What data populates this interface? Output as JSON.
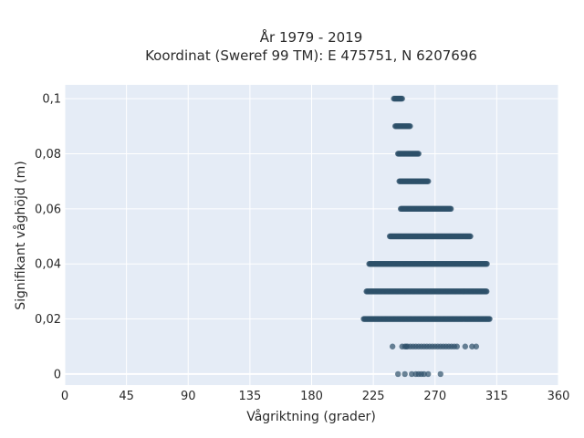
{
  "chart_data": {
    "type": "scatter",
    "title_line1": "År 1979 - 2019",
    "title_line2": "Koordinat (Sweref 99 TM): E 475751, N 6207696",
    "xlabel": "Vågriktning (grader)",
    "ylabel": "Signifikant våghöjd (m)",
    "xlim": [
      0,
      360
    ],
    "ylim": [
      -0.004,
      0.105
    ],
    "x_ticks": [
      0,
      45,
      90,
      135,
      180,
      225,
      270,
      315,
      360
    ],
    "x_tick_labels": [
      "0",
      "45",
      "90",
      "135",
      "180",
      "225",
      "270",
      "315",
      "360"
    ],
    "y_ticks": [
      0,
      0.02,
      0.04,
      0.06,
      0.08,
      0.1
    ],
    "y_tick_labels": [
      "0",
      "0,02",
      "0,04",
      "0,06",
      "0,08",
      "0,1"
    ],
    "grid": true,
    "colors": {
      "background": "#e5ecf6",
      "grid": "#ffffff",
      "marker": "#2e5069"
    },
    "bands": [
      {
        "y": 0.1,
        "x_min": 240,
        "x_max": 246
      },
      {
        "y": 0.09,
        "x_min": 241,
        "x_max": 252
      },
      {
        "y": 0.08,
        "x_min": 243,
        "x_max": 258
      },
      {
        "y": 0.07,
        "x_min": 244,
        "x_max": 265
      },
      {
        "y": 0.06,
        "x_min": 245,
        "x_max": 282
      },
      {
        "y": 0.05,
        "x_min": 237,
        "x_max": 296
      },
      {
        "y": 0.04,
        "x_min": 222,
        "x_max": 308
      },
      {
        "y": 0.03,
        "x_min": 220,
        "x_max": 308
      },
      {
        "y": 0.02,
        "x_min": 218,
        "x_max": 310
      }
    ],
    "sparse_points": [
      {
        "x": 239,
        "y": 0.01
      },
      {
        "x": 246,
        "y": 0.01
      },
      {
        "x": 248,
        "y": 0.01
      },
      {
        "x": 249,
        "y": 0.01
      },
      {
        "x": 250,
        "y": 0.01
      },
      {
        "x": 252,
        "y": 0.01
      },
      {
        "x": 254,
        "y": 0.01
      },
      {
        "x": 256,
        "y": 0.01
      },
      {
        "x": 258,
        "y": 0.01
      },
      {
        "x": 260,
        "y": 0.01
      },
      {
        "x": 262,
        "y": 0.01
      },
      {
        "x": 264,
        "y": 0.01
      },
      {
        "x": 266,
        "y": 0.01
      },
      {
        "x": 268,
        "y": 0.01
      },
      {
        "x": 270,
        "y": 0.01
      },
      {
        "x": 272,
        "y": 0.01
      },
      {
        "x": 274,
        "y": 0.01
      },
      {
        "x": 276,
        "y": 0.01
      },
      {
        "x": 278,
        "y": 0.01
      },
      {
        "x": 280,
        "y": 0.01
      },
      {
        "x": 282,
        "y": 0.01
      },
      {
        "x": 284,
        "y": 0.01
      },
      {
        "x": 286,
        "y": 0.01
      },
      {
        "x": 292,
        "y": 0.01
      },
      {
        "x": 297,
        "y": 0.01
      },
      {
        "x": 300,
        "y": 0.01
      },
      {
        "x": 243,
        "y": 0
      },
      {
        "x": 248,
        "y": 0
      },
      {
        "x": 253,
        "y": 0
      },
      {
        "x": 256,
        "y": 0
      },
      {
        "x": 258,
        "y": 0
      },
      {
        "x": 260,
        "y": 0
      },
      {
        "x": 262,
        "y": 0
      },
      {
        "x": 265,
        "y": 0
      },
      {
        "x": 274,
        "y": 0
      }
    ]
  }
}
